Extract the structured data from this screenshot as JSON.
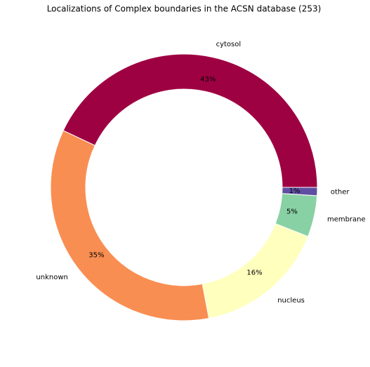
{
  "chart_data": {
    "type": "pie",
    "title": "Localizations of Complex boundaries in the ACSN database (253)",
    "categories": [
      "cytosol",
      "unknown",
      "nucleus",
      "membrane",
      "other"
    ],
    "values": [
      43,
      35,
      16,
      5,
      1
    ],
    "value_labels": [
      "43%",
      "35%",
      "16%",
      "5%",
      "1%"
    ],
    "colors": [
      "#9e0142",
      "#f98e52",
      "#ffffbe",
      "#88d1a4",
      "#5e4fa2"
    ],
    "donut": true
  }
}
